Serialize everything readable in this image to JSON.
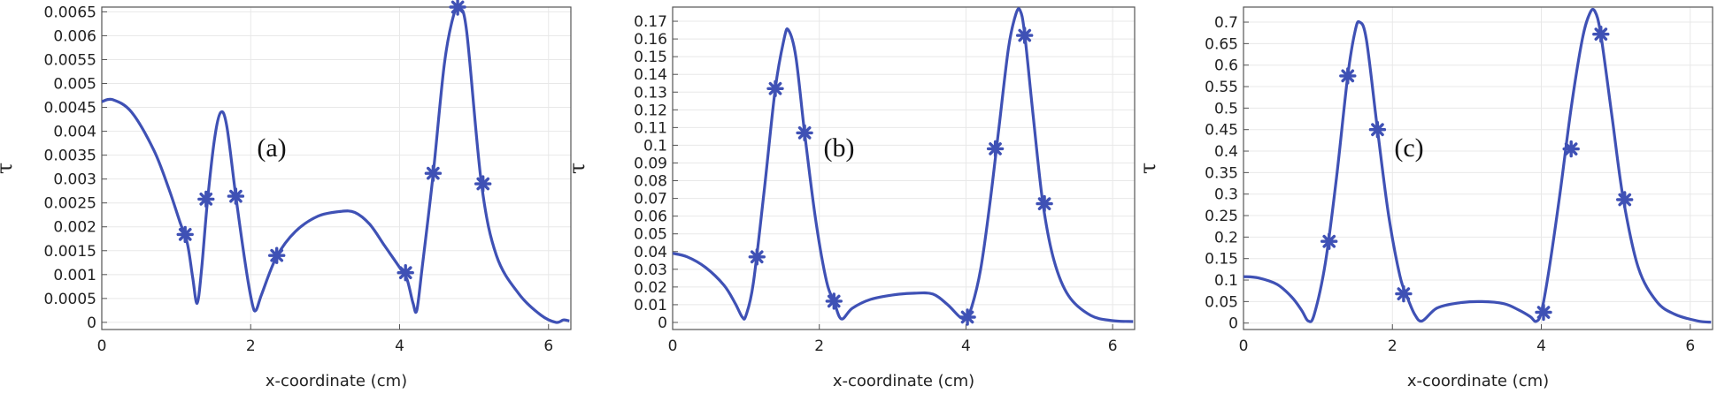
{
  "style": {
    "line_color": "#3f51b5",
    "grid": true
  },
  "chart_data": [
    {
      "type": "line",
      "annotation": "(a)",
      "xlabel": "x-coordinate (cm)",
      "ylabel": "τ",
      "xlim": [
        0,
        6.3
      ],
      "ylim": [
        -0.00015,
        0.0066
      ],
      "xticks": [
        0,
        2,
        4,
        6
      ],
      "yticks": [
        "0",
        "0.0005",
        "0.001",
        "0.0015",
        "0.002",
        "0.0025",
        "0.003",
        "0.0035",
        "0.004",
        "0.0045",
        "0.005",
        "0.0055",
        "0.006",
        "0.0065"
      ],
      "series": [
        {
          "x": [
            0,
            0.15,
            0.4,
            0.7,
            0.9,
            1.05,
            1.15,
            1.22,
            1.28,
            1.34,
            1.42,
            1.52,
            1.6,
            1.68,
            1.8,
            1.93,
            2.02,
            2.07,
            2.15,
            2.35,
            2.6,
            2.9,
            3.2,
            3.4,
            3.6,
            3.8,
            4.0,
            4.1,
            4.18,
            4.23,
            4.3,
            4.45,
            4.6,
            4.72,
            4.8,
            4.9,
            5.1,
            5.3,
            5.6,
            5.9,
            6.1,
            6.2,
            6.28
          ],
          "y": [
            0.00462,
            0.00466,
            0.0044,
            0.0036,
            0.0028,
            0.0021,
            0.00165,
            0.00095,
            0.0004,
            0.0011,
            0.00255,
            0.0039,
            0.0044,
            0.0041,
            0.00265,
            0.0012,
            0.0004,
            0.00025,
            0.0006,
            0.00138,
            0.0019,
            0.00222,
            0.00232,
            0.0023,
            0.00205,
            0.0016,
            0.00115,
            0.0009,
            0.0004,
            0.00025,
            0.0011,
            0.0031,
            0.0054,
            0.0064,
            0.00655,
            0.0061,
            0.0029,
            0.0014,
            0.0006,
            0.00015,
            0.0,
            5e-05,
            3e-05
          ]
        }
      ],
      "markers": {
        "x": [
          1.12,
          1.4,
          1.8,
          2.35,
          4.08,
          4.45,
          4.78,
          5.12
        ],
        "y": [
          0.00184,
          0.00258,
          0.00264,
          0.0014,
          0.00104,
          0.00312,
          0.0066,
          0.0029
        ]
      }
    },
    {
      "type": "line",
      "annotation": "(b)",
      "xlabel": "x-coordinate (cm)",
      "ylabel": "τ",
      "xlim": [
        0,
        6.3
      ],
      "ylim": [
        -0.004,
        0.178
      ],
      "xticks": [
        0,
        2,
        4,
        6
      ],
      "yticks": [
        "0",
        "0.01",
        "0.02",
        "0.03",
        "0.04",
        "0.05",
        "0.06",
        "0.07",
        "0.08",
        "0.09",
        "0.1",
        "0.11",
        "0.12",
        "0.13",
        "0.14",
        "0.15",
        "0.16",
        "0.17"
      ],
      "series": [
        {
          "x": [
            0,
            0.2,
            0.45,
            0.7,
            0.85,
            0.95,
            1.0,
            1.1,
            1.25,
            1.4,
            1.52,
            1.58,
            1.68,
            1.8,
            1.95,
            2.1,
            2.2,
            2.3,
            2.45,
            2.7,
            3.0,
            3.3,
            3.55,
            3.75,
            3.92,
            4.0,
            4.08,
            4.2,
            4.32,
            4.45,
            4.58,
            4.68,
            4.74,
            4.8,
            4.92,
            5.05,
            5.2,
            5.4,
            5.7,
            6.0,
            6.28
          ],
          "y": [
            0.039,
            0.037,
            0.031,
            0.021,
            0.011,
            0.003,
            0.004,
            0.022,
            0.075,
            0.132,
            0.16,
            0.165,
            0.15,
            0.107,
            0.058,
            0.023,
            0.012,
            0.002,
            0.008,
            0.013,
            0.0155,
            0.0165,
            0.016,
            0.01,
            0.003,
            0.003,
            0.009,
            0.03,
            0.065,
            0.11,
            0.155,
            0.174,
            0.176,
            0.163,
            0.115,
            0.067,
            0.035,
            0.015,
            0.004,
            0.001,
            0.0005
          ]
        }
      ],
      "markers": {
        "x": [
          1.15,
          1.4,
          1.8,
          2.2,
          4.02,
          4.4,
          4.8,
          5.07
        ],
        "y": [
          0.037,
          0.132,
          0.107,
          0.012,
          0.003,
          0.098,
          0.162,
          0.067
        ]
      }
    },
    {
      "type": "line",
      "annotation": "(c)",
      "xlabel": "x-coordinate (cm)",
      "ylabel": "τ",
      "xlim": [
        0,
        6.3
      ],
      "ylim": [
        -0.015,
        0.735
      ],
      "xticks": [
        0,
        2,
        4,
        6
      ],
      "yticks": [
        "0",
        "0.05",
        "0.1",
        "0.15",
        "0.2",
        "0.25",
        "0.3",
        "0.35",
        "0.4",
        "0.45",
        "0.5",
        "0.55",
        "0.6",
        "0.65",
        "0.7"
      ],
      "series": [
        {
          "x": [
            0,
            0.2,
            0.45,
            0.65,
            0.78,
            0.87,
            0.95,
            1.1,
            1.25,
            1.4,
            1.5,
            1.56,
            1.65,
            1.8,
            1.95,
            2.1,
            2.2,
            2.3,
            2.4,
            2.6,
            2.9,
            3.2,
            3.5,
            3.7,
            3.85,
            3.93,
            4.0,
            4.1,
            4.25,
            4.4,
            4.55,
            4.65,
            4.72,
            4.8,
            4.95,
            5.1,
            5.3,
            5.55,
            5.8,
            6.1,
            6.28
          ],
          "y": [
            0.108,
            0.105,
            0.09,
            0.06,
            0.03,
            0.005,
            0.02,
            0.14,
            0.34,
            0.575,
            0.68,
            0.7,
            0.66,
            0.45,
            0.25,
            0.11,
            0.06,
            0.02,
            0.005,
            0.035,
            0.047,
            0.05,
            0.045,
            0.03,
            0.015,
            0.004,
            0.025,
            0.12,
            0.3,
            0.5,
            0.66,
            0.72,
            0.725,
            0.67,
            0.48,
            0.29,
            0.13,
            0.05,
            0.02,
            0.005,
            0.002
          ]
        }
      ],
      "markers": {
        "x": [
          1.15,
          1.4,
          1.8,
          2.15,
          4.03,
          4.4,
          4.8,
          5.12
        ],
        "y": [
          0.19,
          0.575,
          0.45,
          0.068,
          0.025,
          0.405,
          0.672,
          0.287
        ]
      }
    }
  ]
}
